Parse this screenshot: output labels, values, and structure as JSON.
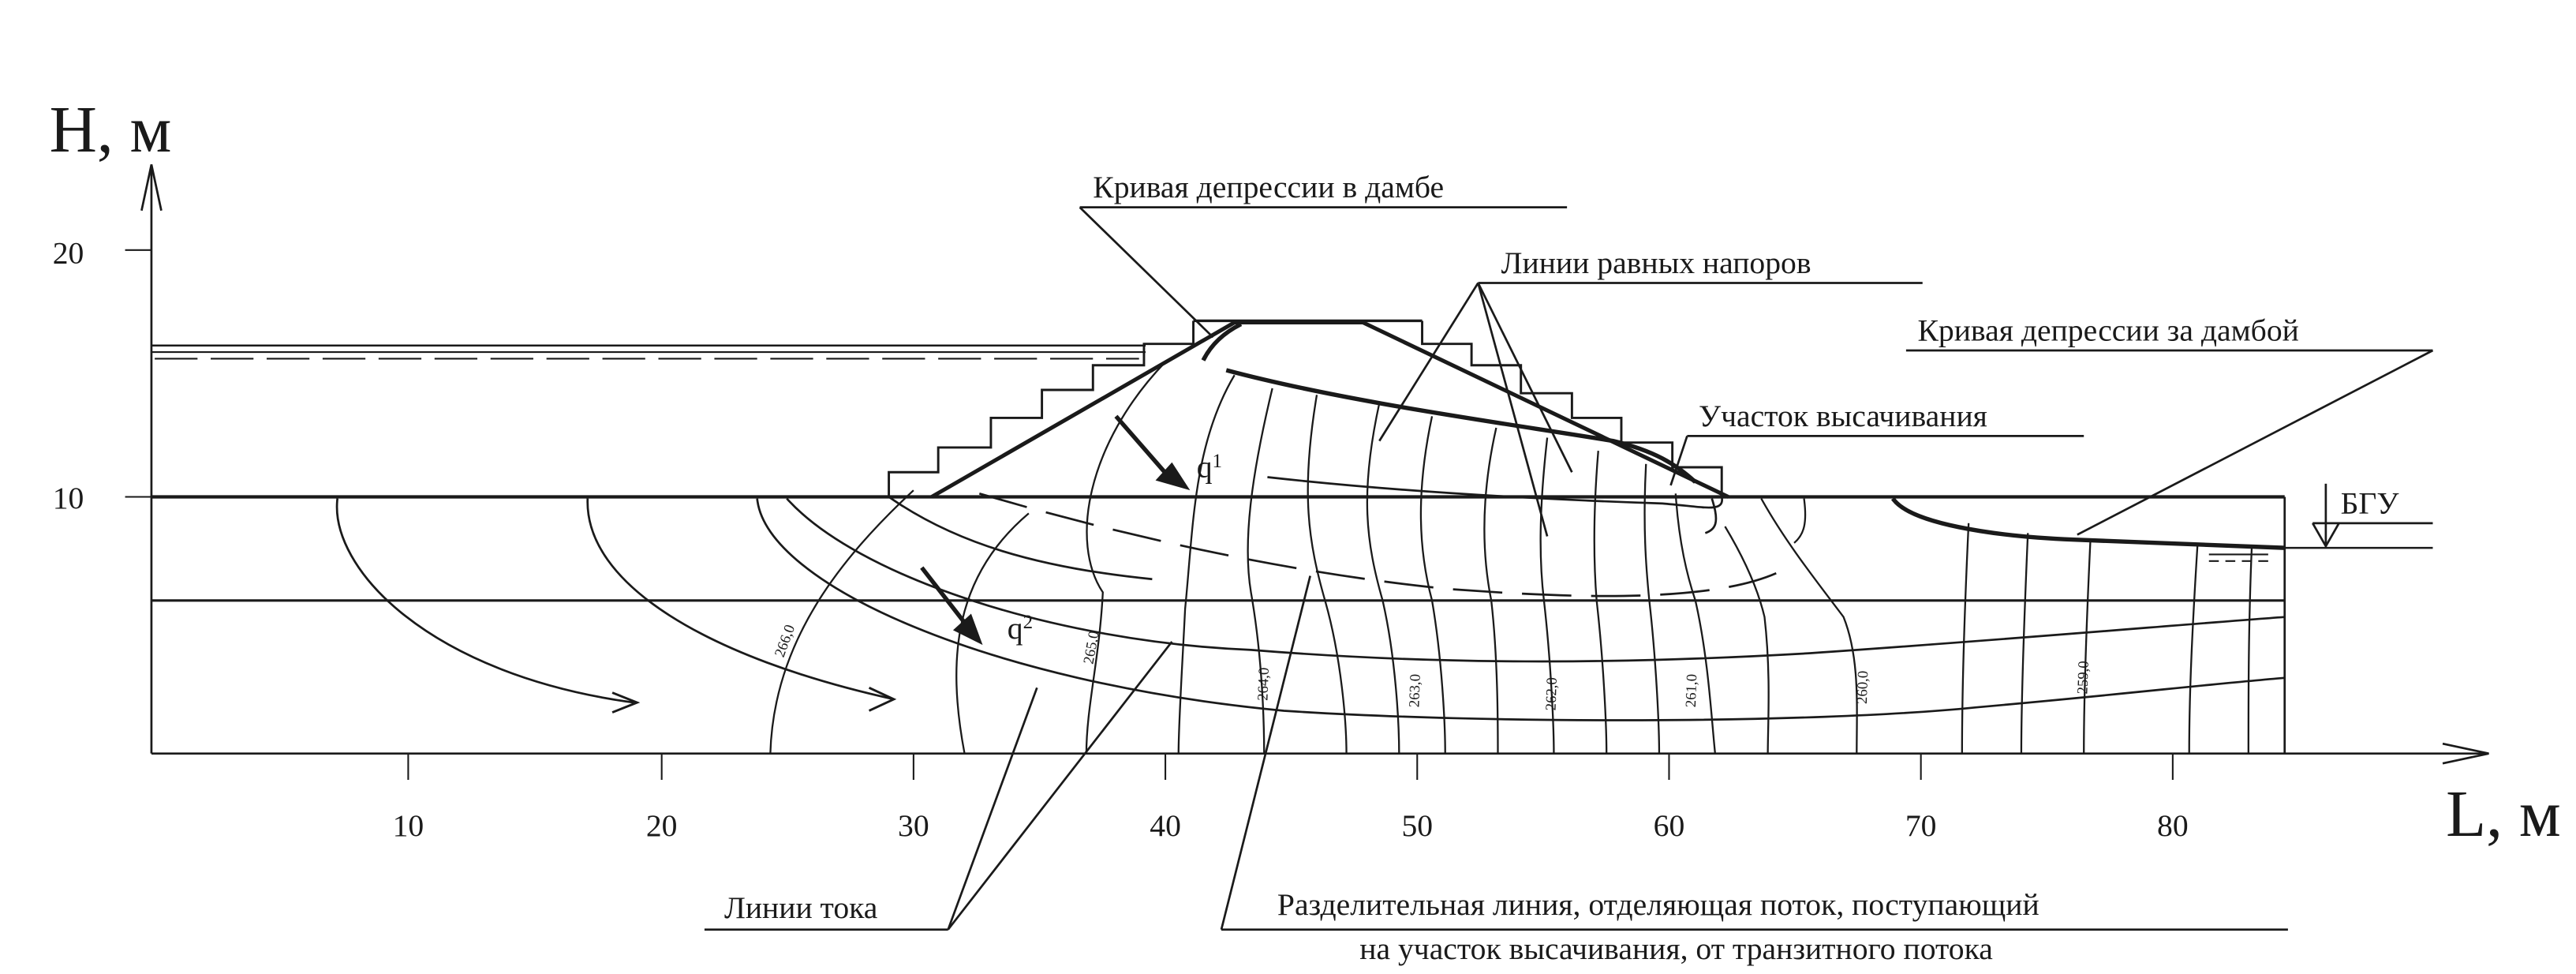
{
  "axes": {
    "y_label": "H, м",
    "x_label": "L, м",
    "y_ticks": [
      "20",
      "10"
    ],
    "x_ticks": [
      "10",
      "20",
      "30",
      "40",
      "50",
      "60",
      "70",
      "80"
    ]
  },
  "callouts": {
    "dam_depression_curve": "Кривая депрессии в дамбе",
    "equal_head_lines": "Линии равных напоров",
    "depression_curve_behind_dam": "Кривая депрессии за дамбой",
    "seepage_zone": "Участок высачивания",
    "groundwater_level": "БГУ",
    "flow_lines": "Линии тока",
    "dividing_line_1": "Разделительная линия, отделяющая поток, поступающий",
    "dividing_line_2": "на участок высачивания, от транзитного потока"
  },
  "flows": {
    "q1": "q",
    "q1_sub": "1",
    "q2": "q",
    "q2_sub": "2"
  },
  "isolines": [
    "266,0",
    "265,0",
    "264,0",
    "263,0",
    "262,0",
    "261,0",
    "260,0",
    "259,0"
  ],
  "colors": {
    "ink": "#1a1a1a",
    "background": "#ffffff"
  }
}
